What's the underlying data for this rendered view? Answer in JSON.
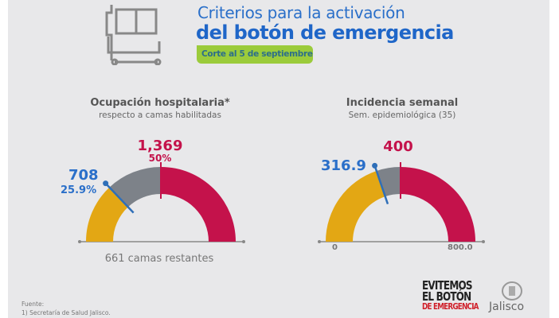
{
  "header": {
    "title_line1": "Criterios para la activación",
    "title_line2": "del botón de emergencia",
    "date_badge": "Corte al 5 de septiembre",
    "icon": "hospital-bed-icon"
  },
  "colors": {
    "background": "#e8e8ea",
    "blue": "#2a6fc9",
    "red": "#c4124b",
    "yellow": "#e3a714",
    "gray": "#7d8289",
    "green": "#9bcb3b"
  },
  "gauges": [
    {
      "title": "Ocupación hospitalaria*",
      "subtitle": "respecto a camas habilitadas",
      "value_label": "708",
      "value_pct_label": "25.9%",
      "threshold_label": "1,369",
      "threshold_pct_label": "50%",
      "footer": "661 camas restantes",
      "value": 708,
      "threshold": 1369,
      "max": 2738,
      "value_fraction": 0.259,
      "threshold_fraction": 0.5
    },
    {
      "title": "Incidencia semanal",
      "subtitle": "Sem. epidemiológica (35)",
      "value_label": "316.9",
      "threshold_label": "400",
      "min_label": "0",
      "max_label": "800.0",
      "value": 316.9,
      "threshold": 400,
      "max": 800,
      "value_fraction": 0.396,
      "threshold_fraction": 0.5
    }
  ],
  "footer": {
    "source_label": "Fuente:",
    "source_1": "1) Secretaría de Salud Jalisco.",
    "logo_campaign": [
      "EVITEMOS",
      "EL BOTÓN",
      "DE EMERGENCIA"
    ],
    "logo_state": "Jalisco"
  }
}
